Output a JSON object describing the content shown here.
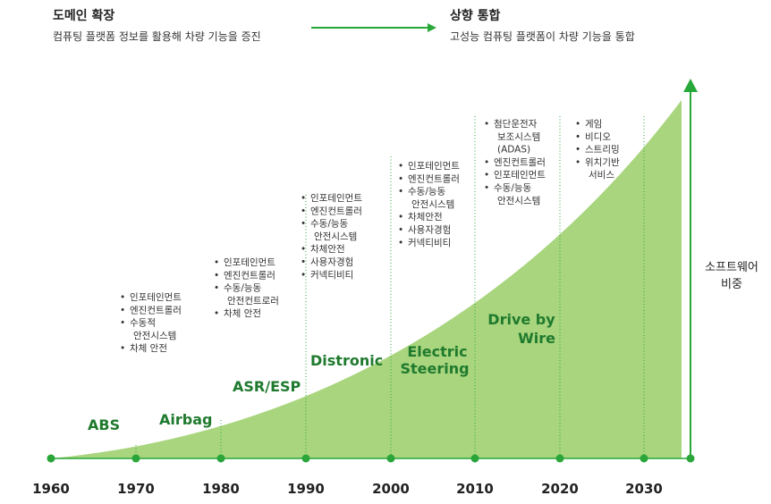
{
  "header": {
    "left_title": "도메인 확장",
    "left_subtitle": "컴퓨팅 플랫폼 정보를 활용해 차량 기능을 증진",
    "right_title": "상향 통합",
    "right_subtitle": "고성능 컴퓨팅 플랫폼이 차량 기능을 통합"
  },
  "side_label": [
    "소프트웨어",
    "비중"
  ],
  "years": [
    "1960",
    "1970",
    "1980",
    "1990",
    "2000",
    "2010",
    "2020",
    "2030"
  ],
  "eras": [
    {
      "lines": [
        "ABS"
      ]
    },
    {
      "lines": [
        "Airbag"
      ]
    },
    {
      "lines": [
        "ASR/ESP"
      ]
    },
    {
      "lines": [
        "Distronic"
      ]
    },
    {
      "lines": [
        "Electric",
        "Steering"
      ]
    },
    {
      "lines": [
        "Drive by",
        "Wire"
      ]
    }
  ],
  "feature_groups": [
    {
      "decade": "1970",
      "items": [
        [
          "인포테인먼트"
        ],
        [
          "엔진컨트롤러"
        ],
        [
          "수동적",
          "안전시스템"
        ],
        [
          "차체 안전"
        ]
      ]
    },
    {
      "decade": "1980",
      "items": [
        [
          "인포테인먼트"
        ],
        [
          "엔진컨트롤러"
        ],
        [
          "수동/능동",
          "안전컨트로러"
        ],
        [
          "차체 안전"
        ]
      ]
    },
    {
      "decade": "1990",
      "items": [
        [
          "인포테인먼트"
        ],
        [
          "엔진컨트롤러"
        ],
        [
          "수동/능동",
          "안전시스템"
        ],
        [
          "차체안전"
        ],
        [
          "사용자경험"
        ],
        [
          "커넥티비티"
        ]
      ]
    },
    {
      "decade": "2000",
      "items": [
        [
          "인포테인먼트"
        ],
        [
          "엔진컨트롤러"
        ],
        [
          "수동/능동",
          "안전시스템"
        ],
        [
          "차체안전"
        ],
        [
          "사용자경험"
        ],
        [
          "커넥티비티"
        ]
      ]
    },
    {
      "decade": "2010",
      "items": [
        [
          "첨단운전자",
          "보조시스템",
          "(ADAS)"
        ],
        [
          "엔진컨트롤러"
        ],
        [
          "인포테인먼트"
        ],
        [
          "수동/능동",
          "안전시스템"
        ]
      ]
    },
    {
      "decade": "2020",
      "items": [
        [
          "게임"
        ],
        [
          "비디오"
        ],
        [
          "스트리밍"
        ],
        [
          "위치기반",
          "서비스"
        ]
      ]
    }
  ],
  "colors": {
    "area_fill": "#a8d57d",
    "accent_green": "#27a839",
    "era_text": "#1f7a2e",
    "dot": "#2aa53a"
  }
}
